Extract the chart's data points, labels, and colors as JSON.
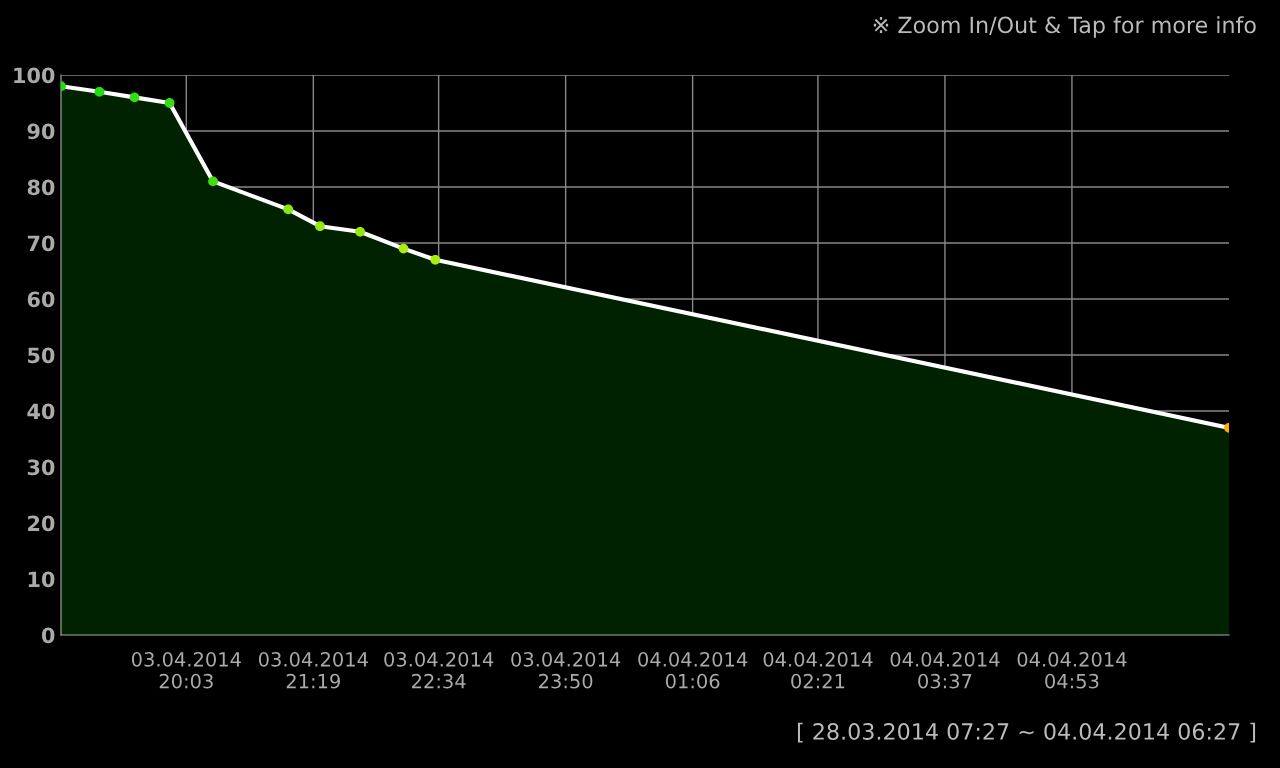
{
  "chart_data": {
    "type": "area",
    "x": [
      "2014-04-03T18:48",
      "2014-04-03T19:11",
      "2014-04-03T19:32",
      "2014-04-03T19:53",
      "2014-04-03T20:19",
      "2014-04-03T21:04",
      "2014-04-03T21:23",
      "2014-04-03T21:47",
      "2014-04-03T22:13",
      "2014-04-03T22:32",
      "2014-04-04T06:27"
    ],
    "series": [
      {
        "color": "#ffffff",
        "values": [
          98,
          97,
          96,
          95,
          81,
          76,
          73,
          72,
          69,
          67,
          37
        ],
        "colors": [
          "#22dd11",
          "#22dd11",
          "#33dd11",
          "#33dd11",
          "#44dd11",
          "#88e611",
          "#99e611",
          "#99e611",
          "#aaee11",
          "#aaee11",
          "#ffaa11"
        ]
      }
    ],
    "xlim": [
      "2014-04-03T18:48",
      "2014-04-04T06:27"
    ],
    "xticks": [
      {
        "value": "2014-04-03T20:03",
        "label": "03.04.2014\n20:03"
      },
      {
        "value": "2014-04-03T21:19",
        "label": "03.04.2014\n21:19"
      },
      {
        "value": "2014-04-03T22:34",
        "label": "03.04.2014\n22:34"
      },
      {
        "value": "2014-04-03T23:50",
        "label": "03.04.2014\n23:50"
      },
      {
        "value": "2014-04-04T01:06",
        "label": "04.04.2014\n01:06"
      },
      {
        "value": "2014-04-04T02:21",
        "label": "04.04.2014\n02:21"
      },
      {
        "value": "2014-04-04T03:37",
        "label": "04.04.2014\n03:37"
      },
      {
        "value": "2014-04-04T04:53",
        "label": "04.04.2014\n04:53"
      }
    ],
    "ylim": [
      0,
      100
    ],
    "yticks": [
      0,
      10,
      20,
      30,
      40,
      50,
      60,
      70,
      80,
      90,
      100
    ],
    "grid": true,
    "marker": "circle",
    "annotations": [
      "※ Zoom In/Out & Tap for more info",
      "[ 28.03.2014 07:27 ~ 04.04.2014 06:27 ]"
    ]
  }
}
